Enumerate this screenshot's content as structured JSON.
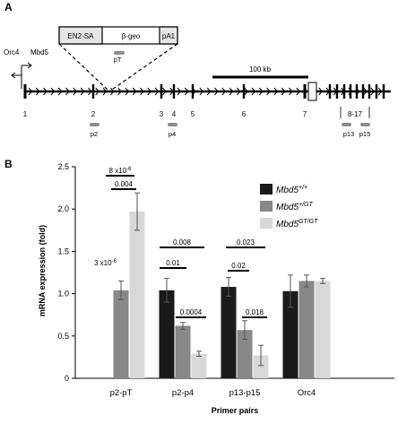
{
  "panelA": {
    "letter": "A",
    "cassette": {
      "left": "EN2-SA",
      "middle": "β-geo",
      "right": "pA1"
    },
    "primer_pT": "pT",
    "genes": {
      "orc4": "Orc4",
      "mbd5": "Mbd5"
    },
    "scale_bar": "100 kb",
    "exon_numbers": [
      "1",
      "2",
      "3",
      "4",
      "5",
      "6",
      "7",
      "8-17"
    ],
    "primers": [
      "p2",
      "p4",
      "p13",
      "p15"
    ]
  },
  "panelB": {
    "letter": "B",
    "legend": {
      "wt": {
        "gene": "Mbd5",
        "sup": "+/+"
      },
      "het": {
        "gene": "Mbd5",
        "sup": "+/GT"
      },
      "hom": {
        "gene": "Mbd5",
        "sup": "GT/GT"
      }
    },
    "significance": {
      "top_pT": {
        "base": "8 x10",
        "exp": "-6"
      },
      "p004": "0.004",
      "left_pT": {
        "base": "3 x10",
        "exp": "-6"
      },
      "s0008": "0.008",
      "s001": "0.01",
      "s00004": "0.0004",
      "s0023": "0.023",
      "s002": "0.02",
      "s0018": "0.018"
    }
  },
  "chart_data": {
    "type": "bar",
    "xlabel": "Primer pairs",
    "ylabel": "mRNA expression (fold)",
    "ylim": [
      0,
      2.5
    ],
    "yticks": [
      "0",
      "0.5",
      "1.0",
      "1.5",
      "2.0",
      "2.5"
    ],
    "categories": [
      "p2-pT",
      "p2-p4",
      "p13-p15",
      "Orc4"
    ],
    "series": [
      {
        "name": "Mbd5+/+",
        "color": "#1a1a1a",
        "values": [
          null,
          1.04,
          1.08,
          1.03
        ],
        "errors": [
          null,
          0.14,
          0.11,
          0.19
        ]
      },
      {
        "name": "Mbd5+/GT",
        "color": "#888888",
        "values": [
          1.04,
          0.62,
          0.57,
          1.15
        ],
        "errors": [
          0.11,
          0.04,
          0.11,
          0.07
        ]
      },
      {
        "name": "Mbd5GT/GT",
        "color": "#d8d8d8",
        "values": [
          1.97,
          0.29,
          0.27,
          1.15
        ],
        "errors": [
          0.22,
          0.03,
          0.12,
          0.03
        ]
      }
    ]
  }
}
